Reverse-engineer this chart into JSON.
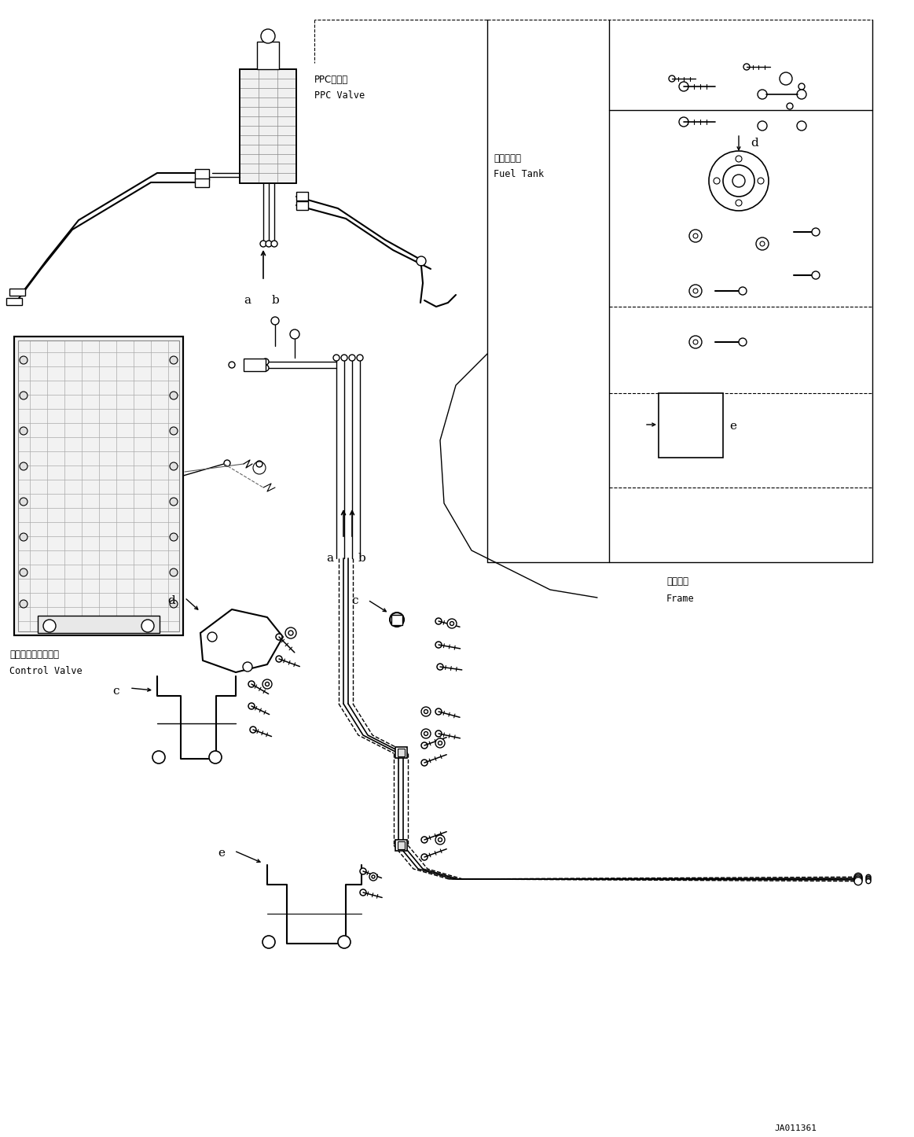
{
  "background_color": "#ffffff",
  "line_color": "#000000",
  "figure_width": 11.63,
  "figure_height": 14.46,
  "dpi": 100,
  "part_id": "JA011361",
  "labels": {
    "ppc_valve_jp": "PPCバルブ",
    "ppc_valve_en": "PPC Valve",
    "fuel_tank_jp": "燃料タンク",
    "fuel_tank_en": "Fuel Tank",
    "control_valve_jp": "コントロールバルブ",
    "control_valve_en": "Control Valve",
    "frame_jp": "フレーム",
    "frame_en": "Frame"
  },
  "font_size_label": 8.5,
  "font_size_callout": 11,
  "font_size_partid": 8
}
